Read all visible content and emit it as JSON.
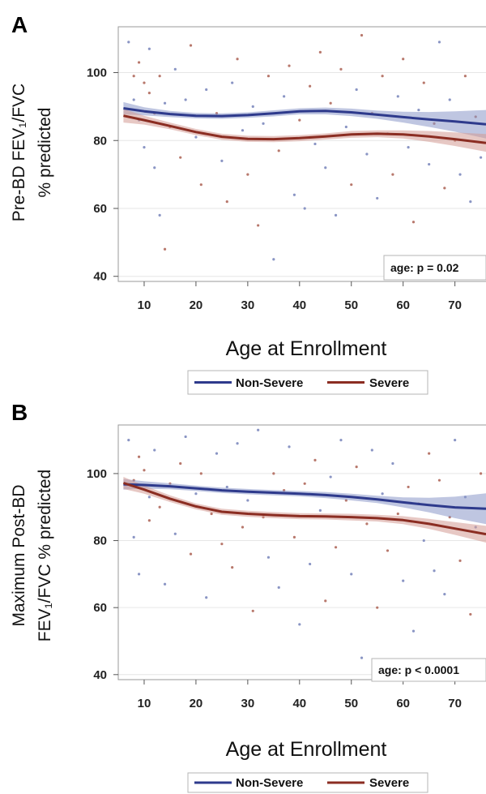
{
  "colors": {
    "non_severe": "#2e3a8c",
    "severe": "#8b2d22",
    "non_severe_band": "#8b97c8",
    "severe_band": "#d49a94",
    "non_severe_points": "#8a95c4",
    "severe_points": "#b8786c",
    "gridline": "#e6e6e6",
    "axis": "#9a9a9a"
  },
  "chart_data": [
    {
      "panel": "A",
      "type": "scatter",
      "ylabel_lines": [
        "Pre-BD FEV₁/FVC",
        "% predicted"
      ],
      "xlabel": "Age at Enrollment",
      "xlim": [
        5,
        76
      ],
      "ylim": [
        38.5,
        113.5
      ],
      "xticks": [
        10,
        20,
        30,
        40,
        50,
        60,
        70
      ],
      "yticks": [
        40,
        60,
        80,
        100
      ],
      "grid": true,
      "annotation": "age: p = 0.02",
      "legend": {
        "position": "bottom-center",
        "entries": [
          "Non-Severe",
          "Severe"
        ]
      },
      "series": [
        {
          "name": "Non-Severe",
          "color_key": "non_severe",
          "x": [
            6,
            10,
            15,
            20,
            25,
            30,
            35,
            40,
            45,
            50,
            55,
            60,
            65,
            70,
            76
          ],
          "y": [
            89.5,
            88.6,
            87.8,
            87.3,
            87.2,
            87.5,
            88.0,
            88.6,
            88.7,
            88.3,
            87.6,
            86.9,
            86.2,
            85.6,
            84.8
          ],
          "band_halfwidth": [
            1.8,
            1.2,
            0.9,
            0.8,
            0.8,
            0.8,
            0.9,
            0.9,
            1.0,
            1.1,
            1.2,
            1.6,
            2.2,
            3.0,
            4.2
          ]
        },
        {
          "name": "Severe",
          "color_key": "severe",
          "x": [
            6,
            10,
            15,
            20,
            25,
            30,
            35,
            40,
            45,
            50,
            55,
            60,
            65,
            70,
            76
          ],
          "y": [
            87.3,
            86.0,
            84.3,
            82.5,
            81.1,
            80.5,
            80.4,
            80.7,
            81.2,
            81.8,
            82.0,
            81.8,
            81.2,
            80.4,
            79.3
          ],
          "band_halfwidth": [
            2.0,
            1.3,
            1.0,
            0.9,
            0.9,
            0.9,
            0.9,
            0.9,
            0.9,
            1.0,
            1.0,
            1.2,
            1.6,
            2.0,
            2.6
          ]
        }
      ],
      "points": [
        {
          "x": 7,
          "y": 109
        },
        {
          "x": 8,
          "y": 99
        },
        {
          "x": 8,
          "y": 92
        },
        {
          "x": 9,
          "y": 103
        },
        {
          "x": 9,
          "y": 86
        },
        {
          "x": 10,
          "y": 97
        },
        {
          "x": 10,
          "y": 78
        },
        {
          "x": 11,
          "y": 94
        },
        {
          "x": 11,
          "y": 107
        },
        {
          "x": 12,
          "y": 88
        },
        {
          "x": 12,
          "y": 72
        },
        {
          "x": 13,
          "y": 99
        },
        {
          "x": 13,
          "y": 58
        },
        {
          "x": 14,
          "y": 48
        },
        {
          "x": 14,
          "y": 91
        },
        {
          "x": 15,
          "y": 84
        },
        {
          "x": 16,
          "y": 101
        },
        {
          "x": 17,
          "y": 75
        },
        {
          "x": 18,
          "y": 92
        },
        {
          "x": 19,
          "y": 108
        },
        {
          "x": 20,
          "y": 81
        },
        {
          "x": 21,
          "y": 67
        },
        {
          "x": 22,
          "y": 95
        },
        {
          "x": 24,
          "y": 88
        },
        {
          "x": 25,
          "y": 74
        },
        {
          "x": 26,
          "y": 62
        },
        {
          "x": 27,
          "y": 97
        },
        {
          "x": 28,
          "y": 104
        },
        {
          "x": 29,
          "y": 83
        },
        {
          "x": 30,
          "y": 70
        },
        {
          "x": 31,
          "y": 90
        },
        {
          "x": 32,
          "y": 55
        },
        {
          "x": 33,
          "y": 85
        },
        {
          "x": 34,
          "y": 99
        },
        {
          "x": 35,
          "y": 45
        },
        {
          "x": 36,
          "y": 77
        },
        {
          "x": 37,
          "y": 93
        },
        {
          "x": 38,
          "y": 102
        },
        {
          "x": 39,
          "y": 64
        },
        {
          "x": 40,
          "y": 86
        },
        {
          "x": 41,
          "y": 60
        },
        {
          "x": 42,
          "y": 96
        },
        {
          "x": 43,
          "y": 79
        },
        {
          "x": 44,
          "y": 106
        },
        {
          "x": 45,
          "y": 72
        },
        {
          "x": 46,
          "y": 91
        },
        {
          "x": 47,
          "y": 58
        },
        {
          "x": 48,
          "y": 101
        },
        {
          "x": 49,
          "y": 84
        },
        {
          "x": 50,
          "y": 67
        },
        {
          "x": 51,
          "y": 95
        },
        {
          "x": 52,
          "y": 111
        },
        {
          "x": 53,
          "y": 76
        },
        {
          "x": 54,
          "y": 88
        },
        {
          "x": 55,
          "y": 63
        },
        {
          "x": 56,
          "y": 99
        },
        {
          "x": 57,
          "y": 82
        },
        {
          "x": 58,
          "y": 70
        },
        {
          "x": 59,
          "y": 93
        },
        {
          "x": 60,
          "y": 104
        },
        {
          "x": 61,
          "y": 78
        },
        {
          "x": 62,
          "y": 56
        },
        {
          "x": 63,
          "y": 89
        },
        {
          "x": 64,
          "y": 97
        },
        {
          "x": 65,
          "y": 73
        },
        {
          "x": 66,
          "y": 85
        },
        {
          "x": 67,
          "y": 109
        },
        {
          "x": 68,
          "y": 66
        },
        {
          "x": 69,
          "y": 92
        },
        {
          "x": 70,
          "y": 80
        },
        {
          "x": 71,
          "y": 70
        },
        {
          "x": 72,
          "y": 99
        },
        {
          "x": 73,
          "y": 62
        },
        {
          "x": 74,
          "y": 87
        },
        {
          "x": 75,
          "y": 75
        }
      ]
    },
    {
      "panel": "B",
      "type": "scatter",
      "ylabel_lines": [
        "Maximum Post-BD",
        "FEV₁/FVC % predicted"
      ],
      "xlabel": "Age at Enrollment",
      "xlim": [
        5,
        76
      ],
      "ylim": [
        38.5,
        114.5
      ],
      "xticks": [
        10,
        20,
        30,
        40,
        50,
        60,
        70
      ],
      "yticks": [
        40,
        60,
        80,
        100
      ],
      "grid": true,
      "annotation": "age: p < 0.0001",
      "legend": {
        "position": "bottom-center",
        "entries": [
          "Non-Severe",
          "Severe"
        ]
      },
      "series": [
        {
          "name": "Non-Severe",
          "color_key": "non_severe",
          "x": [
            6,
            10,
            15,
            20,
            25,
            30,
            35,
            40,
            45,
            50,
            55,
            60,
            65,
            70,
            76
          ],
          "y": [
            96.8,
            96.6,
            96.2,
            95.6,
            95.0,
            94.6,
            94.3,
            94.0,
            93.6,
            93.0,
            92.3,
            91.4,
            90.6,
            89.9,
            89.5
          ],
          "band_halfwidth": [
            1.6,
            1.1,
            0.9,
            0.8,
            0.8,
            0.8,
            0.8,
            0.8,
            0.9,
            1.0,
            1.1,
            1.5,
            2.2,
            3.2,
            4.6
          ]
        },
        {
          "name": "Severe",
          "color_key": "severe",
          "x": [
            6,
            10,
            15,
            20,
            25,
            30,
            35,
            40,
            45,
            50,
            55,
            60,
            65,
            70,
            76
          ],
          "y": [
            97.2,
            95.2,
            92.5,
            90.2,
            88.6,
            88.0,
            87.6,
            87.3,
            87.2,
            87.0,
            86.7,
            86.1,
            85.0,
            83.6,
            81.9
          ],
          "band_halfwidth": [
            1.8,
            1.2,
            1.0,
            0.9,
            0.9,
            0.9,
            0.9,
            0.9,
            0.9,
            1.0,
            1.0,
            1.2,
            1.5,
            1.9,
            2.5
          ]
        }
      ],
      "points": [
        {
          "x": 7,
          "y": 110
        },
        {
          "x": 8,
          "y": 98
        },
        {
          "x": 8,
          "y": 81
        },
        {
          "x": 9,
          "y": 105
        },
        {
          "x": 9,
          "y": 70
        },
        {
          "x": 10,
          "y": 101
        },
        {
          "x": 11,
          "y": 93
        },
        {
          "x": 11,
          "y": 86
        },
        {
          "x": 12,
          "y": 107
        },
        {
          "x": 13,
          "y": 90
        },
        {
          "x": 14,
          "y": 67
        },
        {
          "x": 15,
          "y": 97
        },
        {
          "x": 16,
          "y": 82
        },
        {
          "x": 17,
          "y": 103
        },
        {
          "x": 18,
          "y": 111
        },
        {
          "x": 19,
          "y": 76
        },
        {
          "x": 20,
          "y": 94
        },
        {
          "x": 21,
          "y": 100
        },
        {
          "x": 22,
          "y": 63
        },
        {
          "x": 23,
          "y": 88
        },
        {
          "x": 24,
          "y": 106
        },
        {
          "x": 25,
          "y": 79
        },
        {
          "x": 26,
          "y": 96
        },
        {
          "x": 27,
          "y": 72
        },
        {
          "x": 28,
          "y": 109
        },
        {
          "x": 29,
          "y": 84
        },
        {
          "x": 30,
          "y": 92
        },
        {
          "x": 31,
          "y": 59
        },
        {
          "x": 32,
          "y": 113
        },
        {
          "x": 33,
          "y": 87
        },
        {
          "x": 34,
          "y": 75
        },
        {
          "x": 35,
          "y": 100
        },
        {
          "x": 36,
          "y": 66
        },
        {
          "x": 37,
          "y": 95
        },
        {
          "x": 38,
          "y": 108
        },
        {
          "x": 39,
          "y": 81
        },
        {
          "x": 40,
          "y": 55
        },
        {
          "x": 41,
          "y": 97
        },
        {
          "x": 42,
          "y": 73
        },
        {
          "x": 43,
          "y": 104
        },
        {
          "x": 44,
          "y": 89
        },
        {
          "x": 45,
          "y": 62
        },
        {
          "x": 46,
          "y": 99
        },
        {
          "x": 47,
          "y": 78
        },
        {
          "x": 48,
          "y": 110
        },
        {
          "x": 49,
          "y": 92
        },
        {
          "x": 50,
          "y": 70
        },
        {
          "x": 51,
          "y": 102
        },
        {
          "x": 52,
          "y": 45
        },
        {
          "x": 53,
          "y": 85
        },
        {
          "x": 54,
          "y": 107
        },
        {
          "x": 55,
          "y": 60
        },
        {
          "x": 56,
          "y": 94
        },
        {
          "x": 57,
          "y": 77
        },
        {
          "x": 58,
          "y": 103
        },
        {
          "x": 59,
          "y": 88
        },
        {
          "x": 60,
          "y": 68
        },
        {
          "x": 61,
          "y": 96
        },
        {
          "x": 62,
          "y": 53
        },
        {
          "x": 63,
          "y": 91
        },
        {
          "x": 64,
          "y": 80
        },
        {
          "x": 65,
          "y": 106
        },
        {
          "x": 66,
          "y": 71
        },
        {
          "x": 67,
          "y": 98
        },
        {
          "x": 68,
          "y": 64
        },
        {
          "x": 69,
          "y": 87
        },
        {
          "x": 70,
          "y": 110
        },
        {
          "x": 71,
          "y": 74
        },
        {
          "x": 72,
          "y": 93
        },
        {
          "x": 73,
          "y": 58
        },
        {
          "x": 74,
          "y": 84
        },
        {
          "x": 75,
          "y": 100
        }
      ]
    }
  ]
}
